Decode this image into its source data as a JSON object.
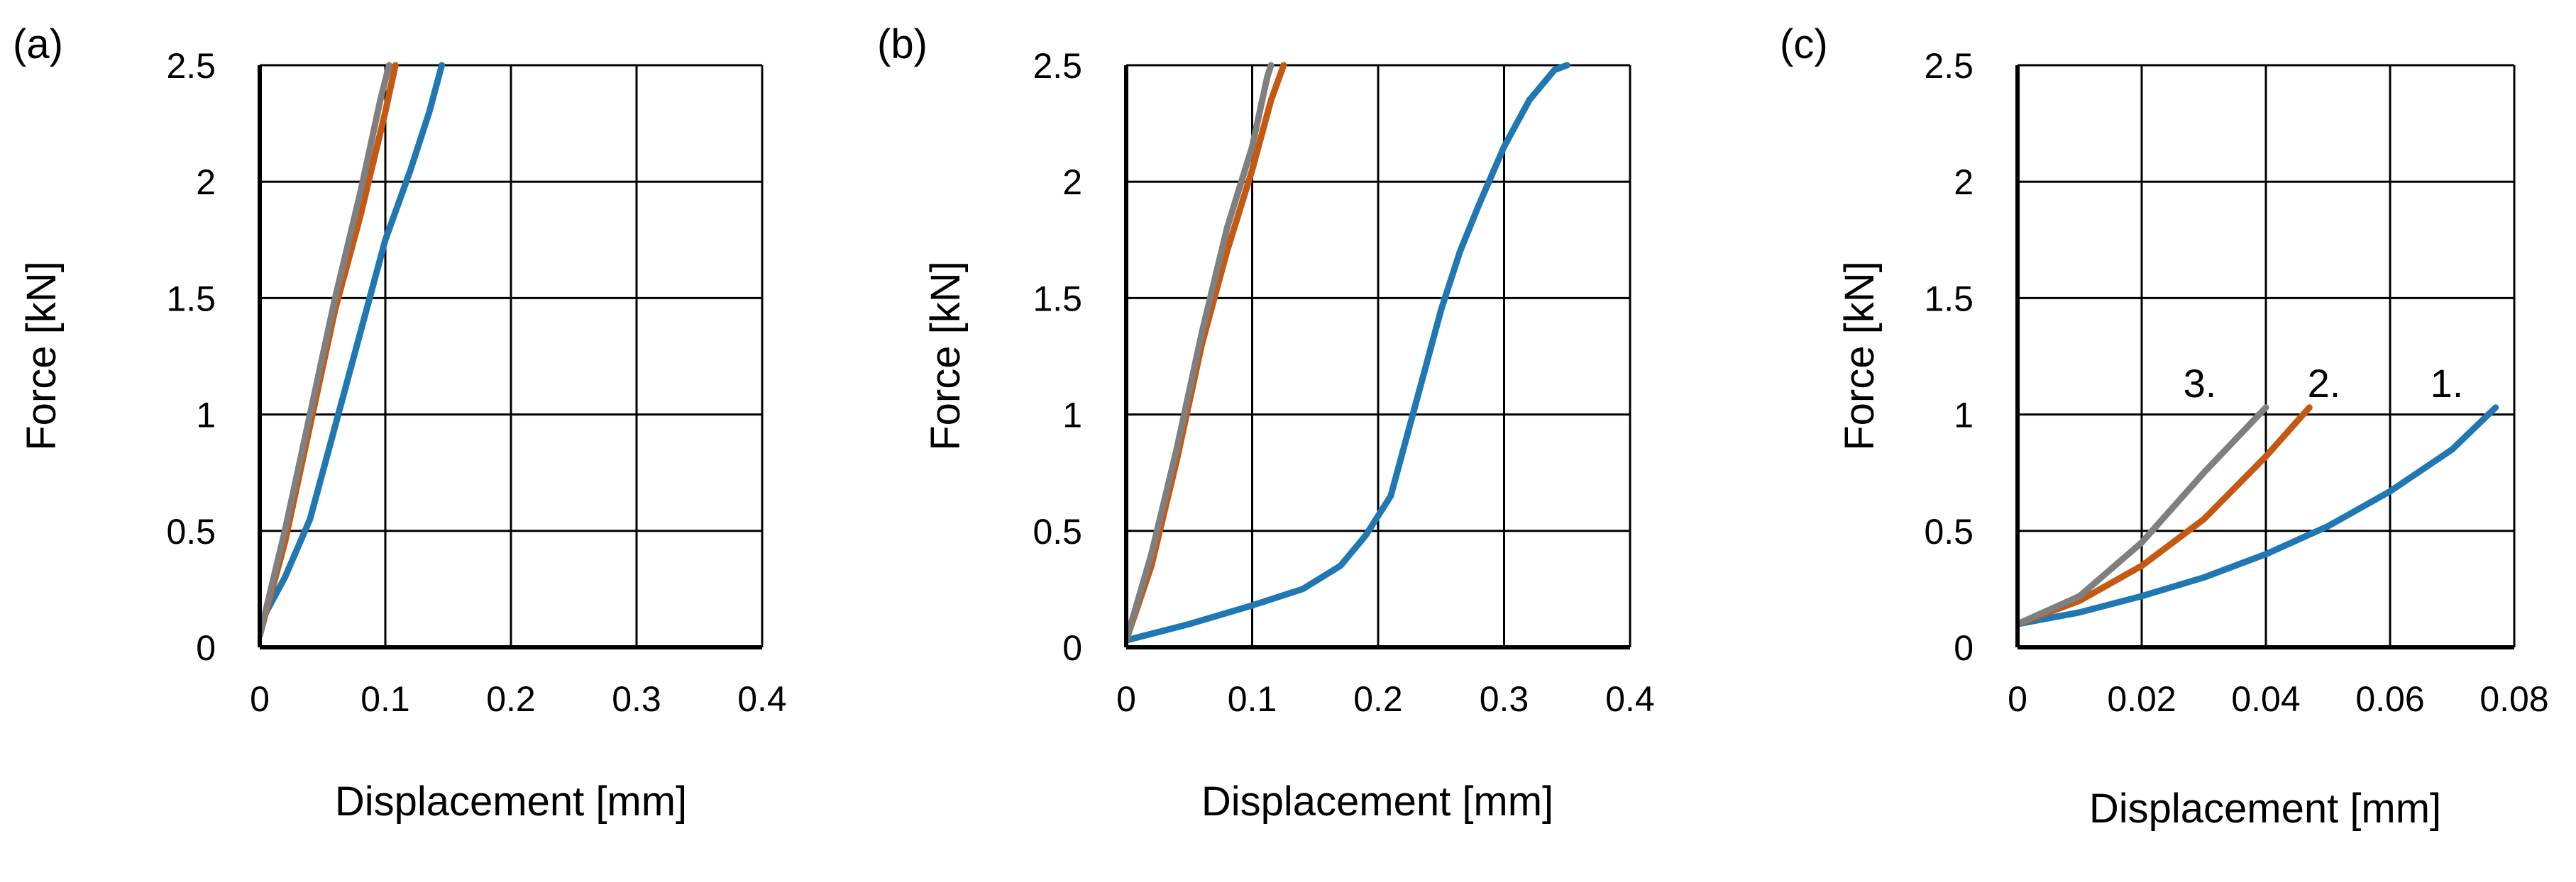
{
  "colors": {
    "series_1": "#1f77b4",
    "series_2": "#c65911",
    "series_3": "#7f7f7f"
  },
  "chart_data": [
    {
      "type": "line",
      "panel_label": "(a)",
      "xlabel": "Displacement [mm]",
      "ylabel": "Force [kN]",
      "xlim": [
        0,
        0.4
      ],
      "ylim": [
        0,
        2.5
      ],
      "x_ticks": [
        "0",
        "0.1",
        "0.2",
        "0.3",
        "0.4"
      ],
      "y_ticks": [
        "0",
        "0.5",
        "1",
        "1.5",
        "2",
        "2.5"
      ],
      "grid": true,
      "series": [
        {
          "color": "#1f77b4",
          "points": [
            [
              0,
              0.1
            ],
            [
              0.02,
              0.3
            ],
            [
              0.04,
              0.55
            ],
            [
              0.055,
              0.85
            ],
            [
              0.065,
              1.05
            ],
            [
              0.08,
              1.35
            ],
            [
              0.1,
              1.75
            ],
            [
              0.12,
              2.05
            ],
            [
              0.135,
              2.3
            ],
            [
              0.145,
              2.5
            ]
          ]
        },
        {
          "color": "#c65911",
          "points": [
            [
              0,
              0.05
            ],
            [
              0.02,
              0.45
            ],
            [
              0.04,
              0.95
            ],
            [
              0.06,
              1.45
            ],
            [
              0.08,
              1.85
            ],
            [
              0.1,
              2.3
            ],
            [
              0.108,
              2.5
            ]
          ]
        },
        {
          "color": "#7f7f7f",
          "points": [
            [
              0,
              0.05
            ],
            [
              0.02,
              0.5
            ],
            [
              0.04,
              1.0
            ],
            [
              0.06,
              1.5
            ],
            [
              0.08,
              1.95
            ],
            [
              0.096,
              2.35
            ],
            [
              0.103,
              2.5
            ]
          ]
        }
      ]
    },
    {
      "type": "line",
      "panel_label": "(b)",
      "xlabel": "Displacement [mm]",
      "ylabel": "Force [kN]",
      "xlim": [
        0,
        0.4
      ],
      "ylim": [
        0,
        2.5
      ],
      "x_ticks": [
        "0",
        "0.1",
        "0.2",
        "0.3",
        "0.4"
      ],
      "y_ticks": [
        "0",
        "0.5",
        "1",
        "1.5",
        "2",
        "2.5"
      ],
      "grid": true,
      "series": [
        {
          "color": "#1f77b4",
          "points": [
            [
              0,
              0.03
            ],
            [
              0.05,
              0.1
            ],
            [
              0.1,
              0.18
            ],
            [
              0.14,
              0.25
            ],
            [
              0.17,
              0.35
            ],
            [
              0.19,
              0.48
            ],
            [
              0.21,
              0.65
            ],
            [
              0.23,
              1.05
            ],
            [
              0.25,
              1.45
            ],
            [
              0.265,
              1.7
            ],
            [
              0.28,
              1.9
            ],
            [
              0.3,
              2.15
            ],
            [
              0.32,
              2.35
            ],
            [
              0.34,
              2.48
            ],
            [
              0.35,
              2.5
            ]
          ]
        },
        {
          "color": "#c65911",
          "points": [
            [
              0,
              0.03
            ],
            [
              0.02,
              0.35
            ],
            [
              0.04,
              0.8
            ],
            [
              0.06,
              1.3
            ],
            [
              0.08,
              1.7
            ],
            [
              0.1,
              2.05
            ],
            [
              0.115,
              2.35
            ],
            [
              0.125,
              2.5
            ]
          ]
        },
        {
          "color": "#7f7f7f",
          "points": [
            [
              0,
              0.03
            ],
            [
              0.02,
              0.4
            ],
            [
              0.04,
              0.85
            ],
            [
              0.06,
              1.35
            ],
            [
              0.08,
              1.8
            ],
            [
              0.1,
              2.15
            ],
            [
              0.112,
              2.45
            ],
            [
              0.115,
              2.5
            ]
          ]
        }
      ]
    },
    {
      "type": "line",
      "panel_label": "(c)",
      "xlabel": "Displacement [mm]",
      "ylabel": "Force [kN]",
      "xlim": [
        0,
        0.08
      ],
      "ylim": [
        0,
        2.5
      ],
      "x_ticks": [
        "0",
        "0.02",
        "0.04",
        "0.06",
        "0.08"
      ],
      "y_ticks": [
        "0",
        "0.5",
        "1",
        "1.5",
        "2",
        "2.5"
      ],
      "grid": true,
      "annotations": [
        "1.",
        "2.",
        "3."
      ],
      "series": [
        {
          "name": "1.",
          "color": "#1f77b4",
          "points": [
            [
              0,
              0.1
            ],
            [
              0.01,
              0.15
            ],
            [
              0.02,
              0.22
            ],
            [
              0.03,
              0.3
            ],
            [
              0.04,
              0.4
            ],
            [
              0.05,
              0.52
            ],
            [
              0.06,
              0.67
            ],
            [
              0.07,
              0.85
            ],
            [
              0.077,
              1.03
            ]
          ]
        },
        {
          "name": "2.",
          "color": "#c65911",
          "points": [
            [
              0,
              0.1
            ],
            [
              0.01,
              0.2
            ],
            [
              0.02,
              0.35
            ],
            [
              0.03,
              0.55
            ],
            [
              0.04,
              0.82
            ],
            [
              0.047,
              1.03
            ]
          ]
        },
        {
          "name": "3.",
          "color": "#7f7f7f",
          "points": [
            [
              0,
              0.1
            ],
            [
              0.01,
              0.22
            ],
            [
              0.02,
              0.45
            ],
            [
              0.03,
              0.75
            ],
            [
              0.04,
              1.03
            ]
          ]
        }
      ]
    }
  ]
}
